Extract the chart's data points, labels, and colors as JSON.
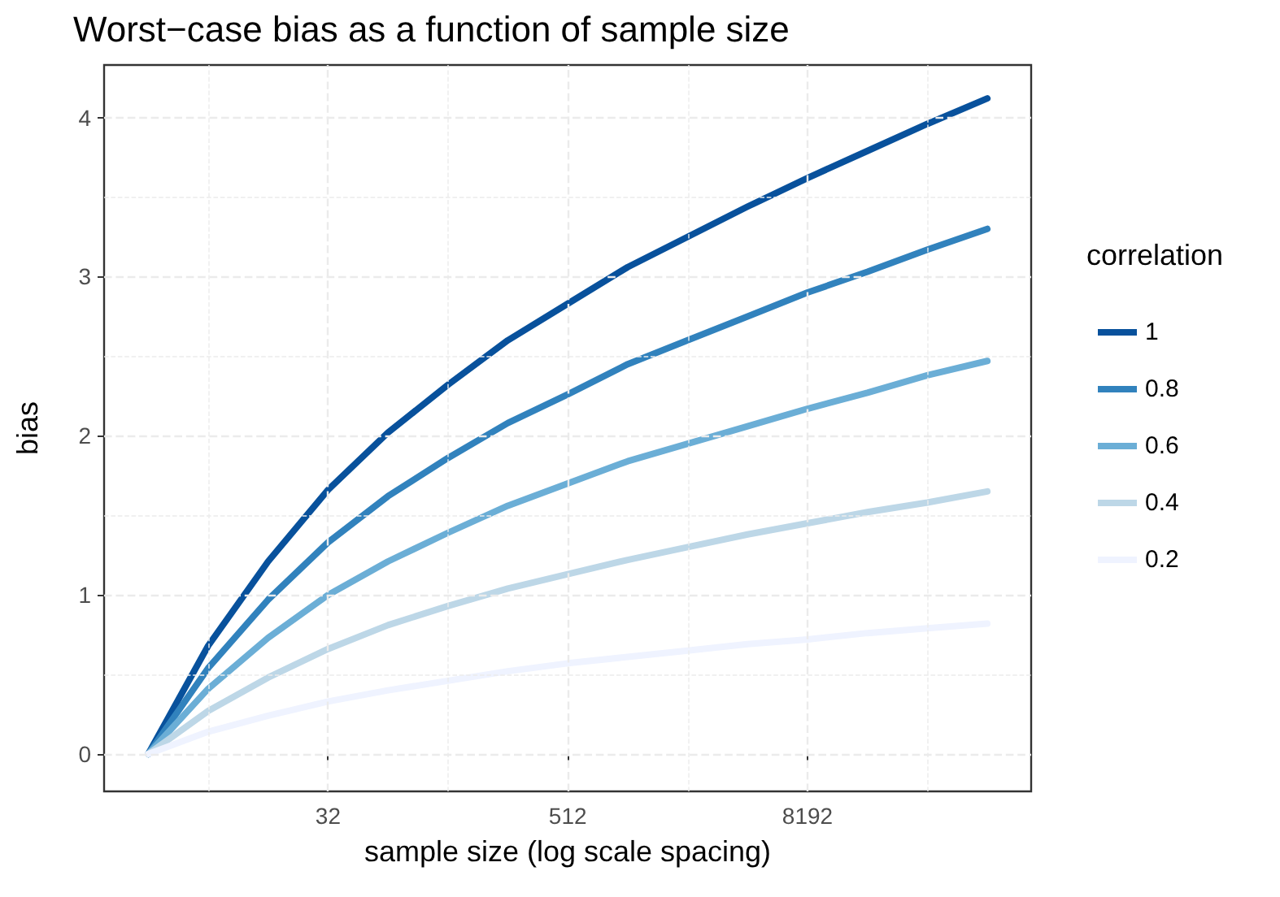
{
  "chart_data": {
    "type": "line",
    "title": "Worst−case bias as a function of sample size",
    "xlabel": "sample size (log scale spacing)",
    "ylabel": "bias",
    "legend_title": "correlation",
    "x": [
      4,
      8,
      16,
      32,
      64,
      128,
      256,
      512,
      1024,
      2048,
      4096,
      8192,
      16384,
      32768,
      65536
    ],
    "series": [
      {
        "name": "1",
        "color": "#08519c",
        "values": [
          0,
          0.68,
          1.21,
          1.66,
          2.02,
          2.32,
          2.6,
          2.83,
          3.06,
          3.25,
          3.44,
          3.62,
          3.79,
          3.96,
          4.12
        ]
      },
      {
        "name": "0.8",
        "color": "#3182bd",
        "values": [
          0,
          0.54,
          0.97,
          1.33,
          1.62,
          1.86,
          2.08,
          2.26,
          2.45,
          2.6,
          2.75,
          2.9,
          3.03,
          3.17,
          3.3
        ]
      },
      {
        "name": "0.6",
        "color": "#6baed6",
        "values": [
          0,
          0.41,
          0.73,
          1.0,
          1.21,
          1.39,
          1.56,
          1.7,
          1.84,
          1.95,
          2.06,
          2.17,
          2.27,
          2.38,
          2.47
        ]
      },
      {
        "name": "0.4",
        "color": "#bdd7e7",
        "values": [
          0,
          0.27,
          0.48,
          0.66,
          0.81,
          0.93,
          1.04,
          1.13,
          1.22,
          1.3,
          1.38,
          1.45,
          1.52,
          1.58,
          1.65
        ]
      },
      {
        "name": "0.2",
        "color": "#eff3ff",
        "values": [
          0,
          0.14,
          0.24,
          0.33,
          0.4,
          0.46,
          0.52,
          0.57,
          0.61,
          0.65,
          0.69,
          0.72,
          0.76,
          0.79,
          0.82
        ]
      }
    ],
    "log": "x",
    "xlim": [
      2.4,
      108800
    ],
    "xticks": [
      {
        "value": 8,
        "label": null
      },
      32,
      {
        "value": 128,
        "label": null
      },
      512,
      {
        "value": 2048,
        "label": null
      },
      8192,
      {
        "value": 32768,
        "label": null
      }
    ],
    "ylim": [
      -0.235,
      4.33
    ],
    "yticks": [
      0,
      {
        "value": 0.5,
        "label": null
      },
      1,
      {
        "value": 1.5,
        "label": null
      },
      2,
      {
        "value": 2.5,
        "label": null
      },
      3,
      {
        "value": 3.5,
        "label": null
      },
      4
    ],
    "grid": true,
    "legend": "right",
    "marker": "none",
    "line_style": "solid"
  }
}
